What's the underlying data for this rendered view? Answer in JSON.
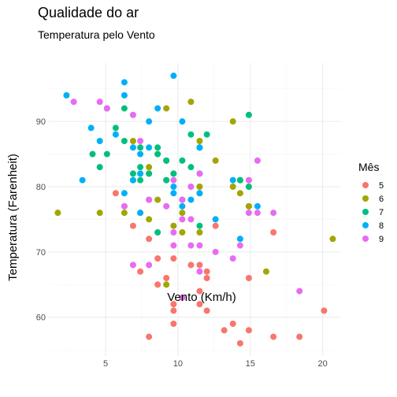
{
  "chart_data": {
    "type": "scatter",
    "title": "Qualidade do ar",
    "subtitle": "Temperatura pelo Vento",
    "xlabel": "Vento (Km/h)",
    "ylabel": "Temperatura (Farenheit)",
    "xlim": [
      1.08,
      21.22
    ],
    "ylim": [
      54.05,
      98.95
    ],
    "x_ticks": [
      5,
      10,
      15,
      20
    ],
    "y_ticks": [
      60,
      70,
      80,
      90
    ],
    "grid": true,
    "legend": {
      "title": "Mês",
      "placement": "right",
      "entries": [
        {
          "label": "5",
          "color": "#F8766D"
        },
        {
          "label": "6",
          "color": "#A3A500"
        },
        {
          "label": "7",
          "color": "#00BF7D"
        },
        {
          "label": "8",
          "color": "#00B0F6"
        },
        {
          "label": "9",
          "color": "#E76BF3"
        }
      ]
    },
    "series": [
      {
        "name": "5",
        "color": "#F8766D",
        "points": [
          [
            7.4,
            67
          ],
          [
            8.0,
            72
          ],
          [
            12.6,
            74
          ],
          [
            11.5,
            62
          ],
          [
            14.3,
            56
          ],
          [
            14.9,
            66
          ],
          [
            8.6,
            65
          ],
          [
            13.8,
            59
          ],
          [
            20.1,
            61
          ],
          [
            8.6,
            69
          ],
          [
            6.9,
            74
          ],
          [
            9.7,
            69
          ],
          [
            9.2,
            66
          ],
          [
            10.9,
            68
          ],
          [
            13.2,
            58
          ],
          [
            11.5,
            64
          ],
          [
            12.0,
            66
          ],
          [
            18.4,
            57
          ],
          [
            11.5,
            68
          ],
          [
            9.7,
            62
          ],
          [
            9.7,
            59
          ],
          [
            16.6,
            73
          ],
          [
            9.7,
            61
          ],
          [
            12.0,
            61
          ],
          [
            16.6,
            57
          ],
          [
            14.9,
            58
          ],
          [
            8.0,
            57
          ],
          [
            12.0,
            67
          ],
          [
            14.9,
            81
          ],
          [
            5.7,
            79
          ],
          [
            7.4,
            76
          ]
        ]
      },
      {
        "name": "6",
        "color": "#A3A500",
        "points": [
          [
            8.6,
            78
          ],
          [
            9.7,
            74
          ],
          [
            16.1,
            67
          ],
          [
            9.2,
            84
          ],
          [
            8.6,
            85
          ],
          [
            14.3,
            79
          ],
          [
            9.7,
            82
          ],
          [
            6.9,
            87
          ],
          [
            13.8,
            90
          ],
          [
            11.5,
            87
          ],
          [
            10.9,
            93
          ],
          [
            9.2,
            92
          ],
          [
            8.0,
            82
          ],
          [
            13.8,
            80
          ],
          [
            11.5,
            79
          ],
          [
            14.9,
            77
          ],
          [
            20.7,
            72
          ],
          [
            9.2,
            65
          ],
          [
            11.5,
            73
          ],
          [
            10.3,
            76
          ],
          [
            6.3,
            77
          ],
          [
            1.7,
            76
          ],
          [
            4.6,
            76
          ],
          [
            6.3,
            76
          ],
          [
            8.0,
            75
          ],
          [
            8.0,
            78
          ],
          [
            10.3,
            73
          ],
          [
            11.5,
            80
          ],
          [
            14.9,
            77
          ],
          [
            8.0,
            83
          ],
          [
            12.6,
            84
          ]
        ]
      },
      {
        "name": "7",
        "color": "#00BF7D",
        "points": [
          [
            4.1,
            85
          ],
          [
            9.2,
            81
          ],
          [
            9.2,
            84
          ],
          [
            10.9,
            83
          ],
          [
            4.6,
            83
          ],
          [
            10.9,
            88
          ],
          [
            5.1,
            92
          ],
          [
            6.3,
            92
          ],
          [
            5.7,
            89
          ],
          [
            7.4,
            82
          ],
          [
            8.6,
            73
          ],
          [
            14.3,
            81
          ],
          [
            14.9,
            91
          ],
          [
            14.9,
            80
          ],
          [
            14.3,
            81
          ],
          [
            6.9,
            82
          ],
          [
            10.3,
            84
          ],
          [
            6.3,
            87
          ],
          [
            5.1,
            85
          ],
          [
            11.5,
            74
          ],
          [
            6.9,
            81
          ],
          [
            9.7,
            82
          ],
          [
            11.5,
            86
          ],
          [
            8.6,
            85
          ],
          [
            8.0,
            82
          ],
          [
            8.6,
            86
          ],
          [
            12.0,
            88
          ],
          [
            7.4,
            86
          ],
          [
            7.4,
            83
          ],
          [
            7.4,
            81
          ],
          [
            9.2,
            81
          ]
        ]
      },
      {
        "name": "8",
        "color": "#00B0F6",
        "points": [
          [
            6.9,
            81
          ],
          [
            13.8,
            81
          ],
          [
            7.4,
            82
          ],
          [
            6.9,
            86
          ],
          [
            7.4,
            85
          ],
          [
            4.6,
            87
          ],
          [
            4.0,
            89
          ],
          [
            10.3,
            90
          ],
          [
            8.0,
            90
          ],
          [
            8.6,
            92
          ],
          [
            11.5,
            86
          ],
          [
            11.5,
            86
          ],
          [
            11.5,
            82
          ],
          [
            9.7,
            80
          ],
          [
            11.5,
            79
          ],
          [
            10.3,
            77
          ],
          [
            6.3,
            79
          ],
          [
            7.4,
            76
          ],
          [
            10.9,
            78
          ],
          [
            10.3,
            78
          ],
          [
            15.5,
            77
          ],
          [
            14.3,
            72
          ],
          [
            12.6,
            75
          ],
          [
            9.7,
            79
          ],
          [
            3.4,
            81
          ],
          [
            8.0,
            86
          ],
          [
            5.7,
            88
          ],
          [
            9.7,
            97
          ],
          [
            2.3,
            94
          ],
          [
            6.3,
            96
          ],
          [
            6.3,
            94
          ]
        ]
      },
      {
        "name": "9",
        "color": "#E76BF3",
        "points": [
          [
            6.9,
            91
          ],
          [
            5.1,
            92
          ],
          [
            2.8,
            93
          ],
          [
            4.6,
            93
          ],
          [
            7.4,
            87
          ],
          [
            15.5,
            84
          ],
          [
            10.9,
            80
          ],
          [
            10.3,
            78
          ],
          [
            10.9,
            75
          ],
          [
            9.7,
            73
          ],
          [
            14.9,
            81
          ],
          [
            15.5,
            76
          ],
          [
            6.3,
            77
          ],
          [
            10.9,
            71
          ],
          [
            9.7,
            71
          ],
          [
            14.3,
            71
          ],
          [
            8.0,
            78
          ],
          [
            11.5,
            67
          ],
          [
            14.9,
            76
          ],
          [
            8.0,
            68
          ],
          [
            11.5,
            82
          ],
          [
            18.4,
            64
          ],
          [
            11.5,
            71
          ],
          [
            9.7,
            81
          ],
          [
            13.8,
            69
          ],
          [
            10.3,
            63
          ],
          [
            12.6,
            70
          ],
          [
            9.2,
            77
          ],
          [
            10.3,
            75
          ],
          [
            16.6,
            76
          ],
          [
            6.9,
            68
          ]
        ]
      }
    ]
  }
}
